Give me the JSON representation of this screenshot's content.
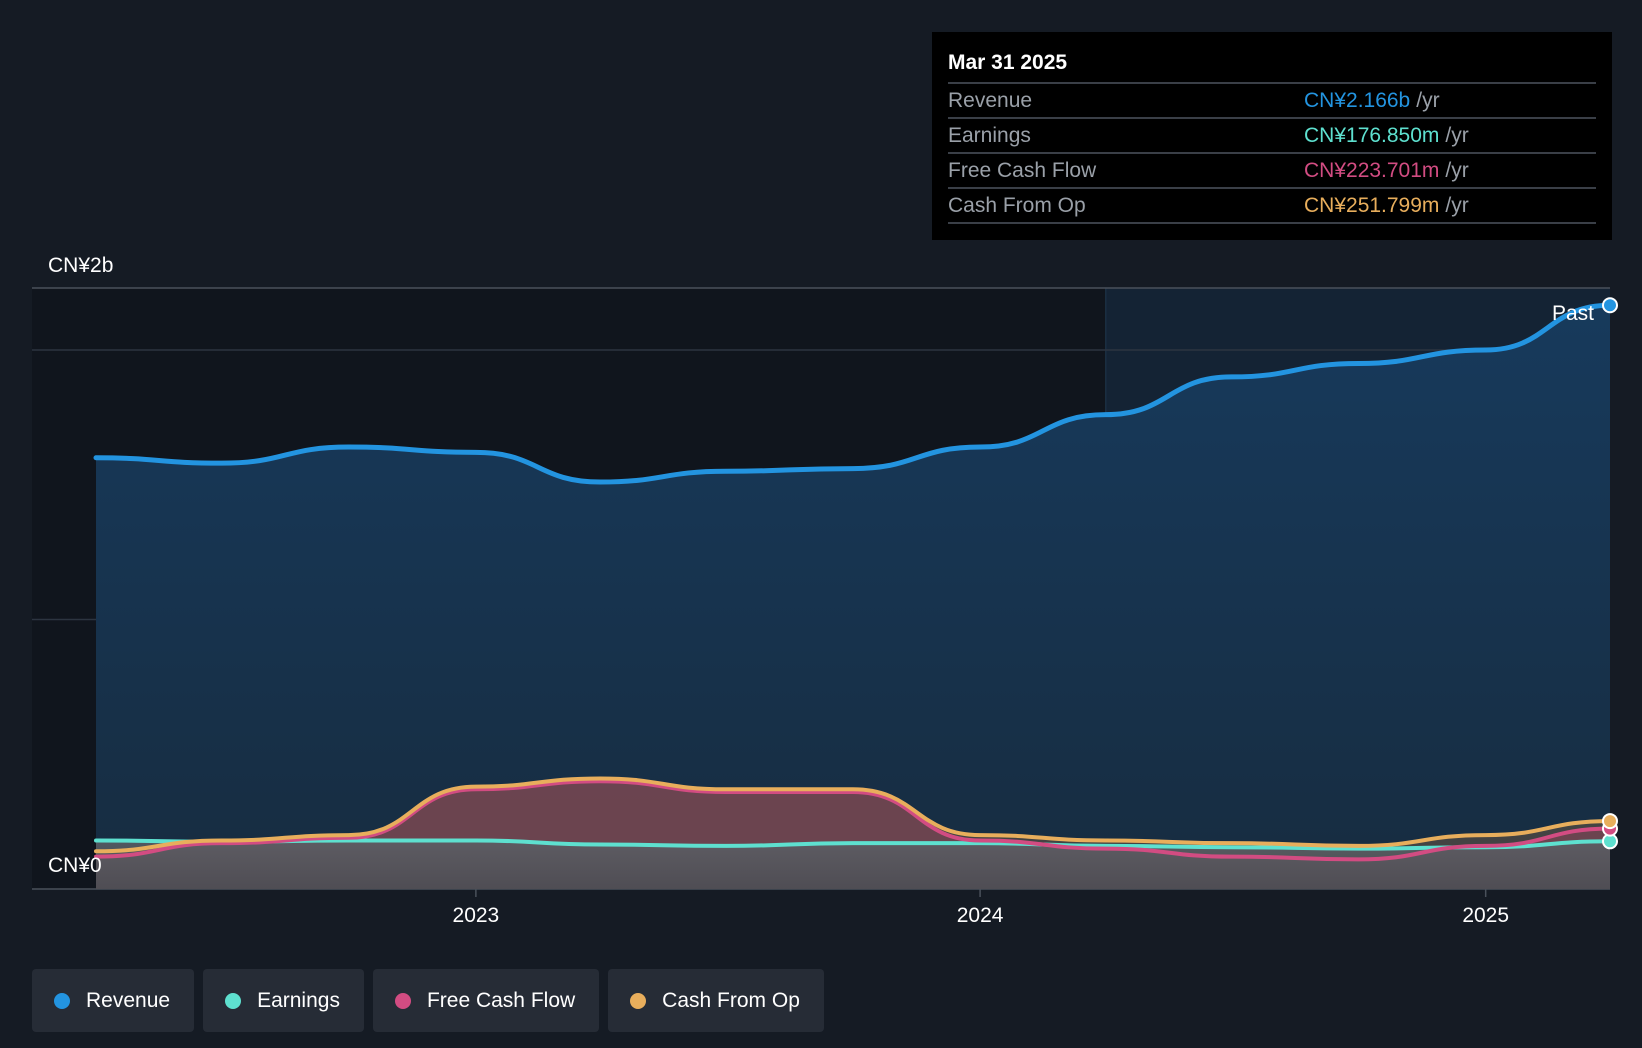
{
  "tooltip": {
    "date": "Mar 31 2025",
    "rows": [
      {
        "label": "Revenue",
        "value": "CN¥2.166b",
        "unit": "/yr",
        "color": "#2394e0"
      },
      {
        "label": "Earnings",
        "value": "CN¥176.850m",
        "unit": "/yr",
        "color": "#5ee0cf"
      },
      {
        "label": "Free Cash Flow",
        "value": "CN¥223.701m",
        "unit": "/yr",
        "color": "#d24c82"
      },
      {
        "label": "Cash From Op",
        "value": "CN¥251.799m",
        "unit": "/yr",
        "color": "#e8ae5c"
      }
    ]
  },
  "past_label": "Past",
  "legend": [
    {
      "label": "Revenue",
      "color": "#2394e0"
    },
    {
      "label": "Earnings",
      "color": "#5ee0cf"
    },
    {
      "label": "Free Cash Flow",
      "color": "#d24c82"
    },
    {
      "label": "Cash From Op",
      "color": "#e8ae5c"
    }
  ],
  "chart_data": {
    "type": "area",
    "y_axis_labels": [
      "CN¥2b",
      "CN¥0"
    ],
    "x_ticks": [
      "2023",
      "2024",
      "2025"
    ],
    "ylim": [
      0,
      2.0
    ],
    "units": "CN¥ billions per year",
    "series": [
      {
        "name": "Revenue",
        "color": "#2394e0",
        "points": [
          [
            "2022-03-31",
            1.6
          ],
          [
            "2022-06-30",
            1.58
          ],
          [
            "2022-09-30",
            1.64
          ],
          [
            "2022-12-31",
            1.62
          ],
          [
            "2023-03-31",
            1.51
          ],
          [
            "2023-06-30",
            1.55
          ],
          [
            "2023-09-30",
            1.56
          ],
          [
            "2023-12-31",
            1.64
          ],
          [
            "2024-03-31",
            1.76
          ],
          [
            "2024-06-30",
            1.9
          ],
          [
            "2024-09-30",
            1.95
          ],
          [
            "2024-12-31",
            2.0
          ],
          [
            "2025-03-31",
            2.166
          ]
        ]
      },
      {
        "name": "Earnings",
        "color": "#5ee0cf",
        "points": [
          [
            "2022-03-31",
            0.18
          ],
          [
            "2022-06-30",
            0.175
          ],
          [
            "2022-09-30",
            0.18
          ],
          [
            "2022-12-31",
            0.18
          ],
          [
            "2023-03-31",
            0.165
          ],
          [
            "2023-06-30",
            0.16
          ],
          [
            "2023-09-30",
            0.17
          ],
          [
            "2023-12-31",
            0.17
          ],
          [
            "2024-03-31",
            0.16
          ],
          [
            "2024-06-30",
            0.155
          ],
          [
            "2024-09-30",
            0.15
          ],
          [
            "2024-12-31",
            0.155
          ],
          [
            "2025-03-31",
            0.177
          ]
        ]
      },
      {
        "name": "Free Cash Flow",
        "color": "#d24c82",
        "points": [
          [
            "2022-03-31",
            0.12
          ],
          [
            "2022-06-30",
            0.17
          ],
          [
            "2022-09-30",
            0.19
          ],
          [
            "2022-12-31",
            0.37
          ],
          [
            "2023-03-31",
            0.4
          ],
          [
            "2023-06-30",
            0.36
          ],
          [
            "2023-09-30",
            0.36
          ],
          [
            "2023-12-31",
            0.18
          ],
          [
            "2024-03-31",
            0.15
          ],
          [
            "2024-06-30",
            0.12
          ],
          [
            "2024-09-30",
            0.11
          ],
          [
            "2024-12-31",
            0.16
          ],
          [
            "2025-03-31",
            0.224
          ]
        ]
      },
      {
        "name": "Cash From Op",
        "color": "#e8ae5c",
        "points": [
          [
            "2022-03-31",
            0.14
          ],
          [
            "2022-06-30",
            0.18
          ],
          [
            "2022-09-30",
            0.2
          ],
          [
            "2022-12-31",
            0.38
          ],
          [
            "2023-03-31",
            0.41
          ],
          [
            "2023-06-30",
            0.37
          ],
          [
            "2023-09-30",
            0.37
          ],
          [
            "2023-12-31",
            0.2
          ],
          [
            "2024-03-31",
            0.18
          ],
          [
            "2024-06-30",
            0.17
          ],
          [
            "2024-09-30",
            0.16
          ],
          [
            "2024-12-31",
            0.2
          ],
          [
            "2025-03-31",
            0.252
          ]
        ]
      }
    ]
  }
}
